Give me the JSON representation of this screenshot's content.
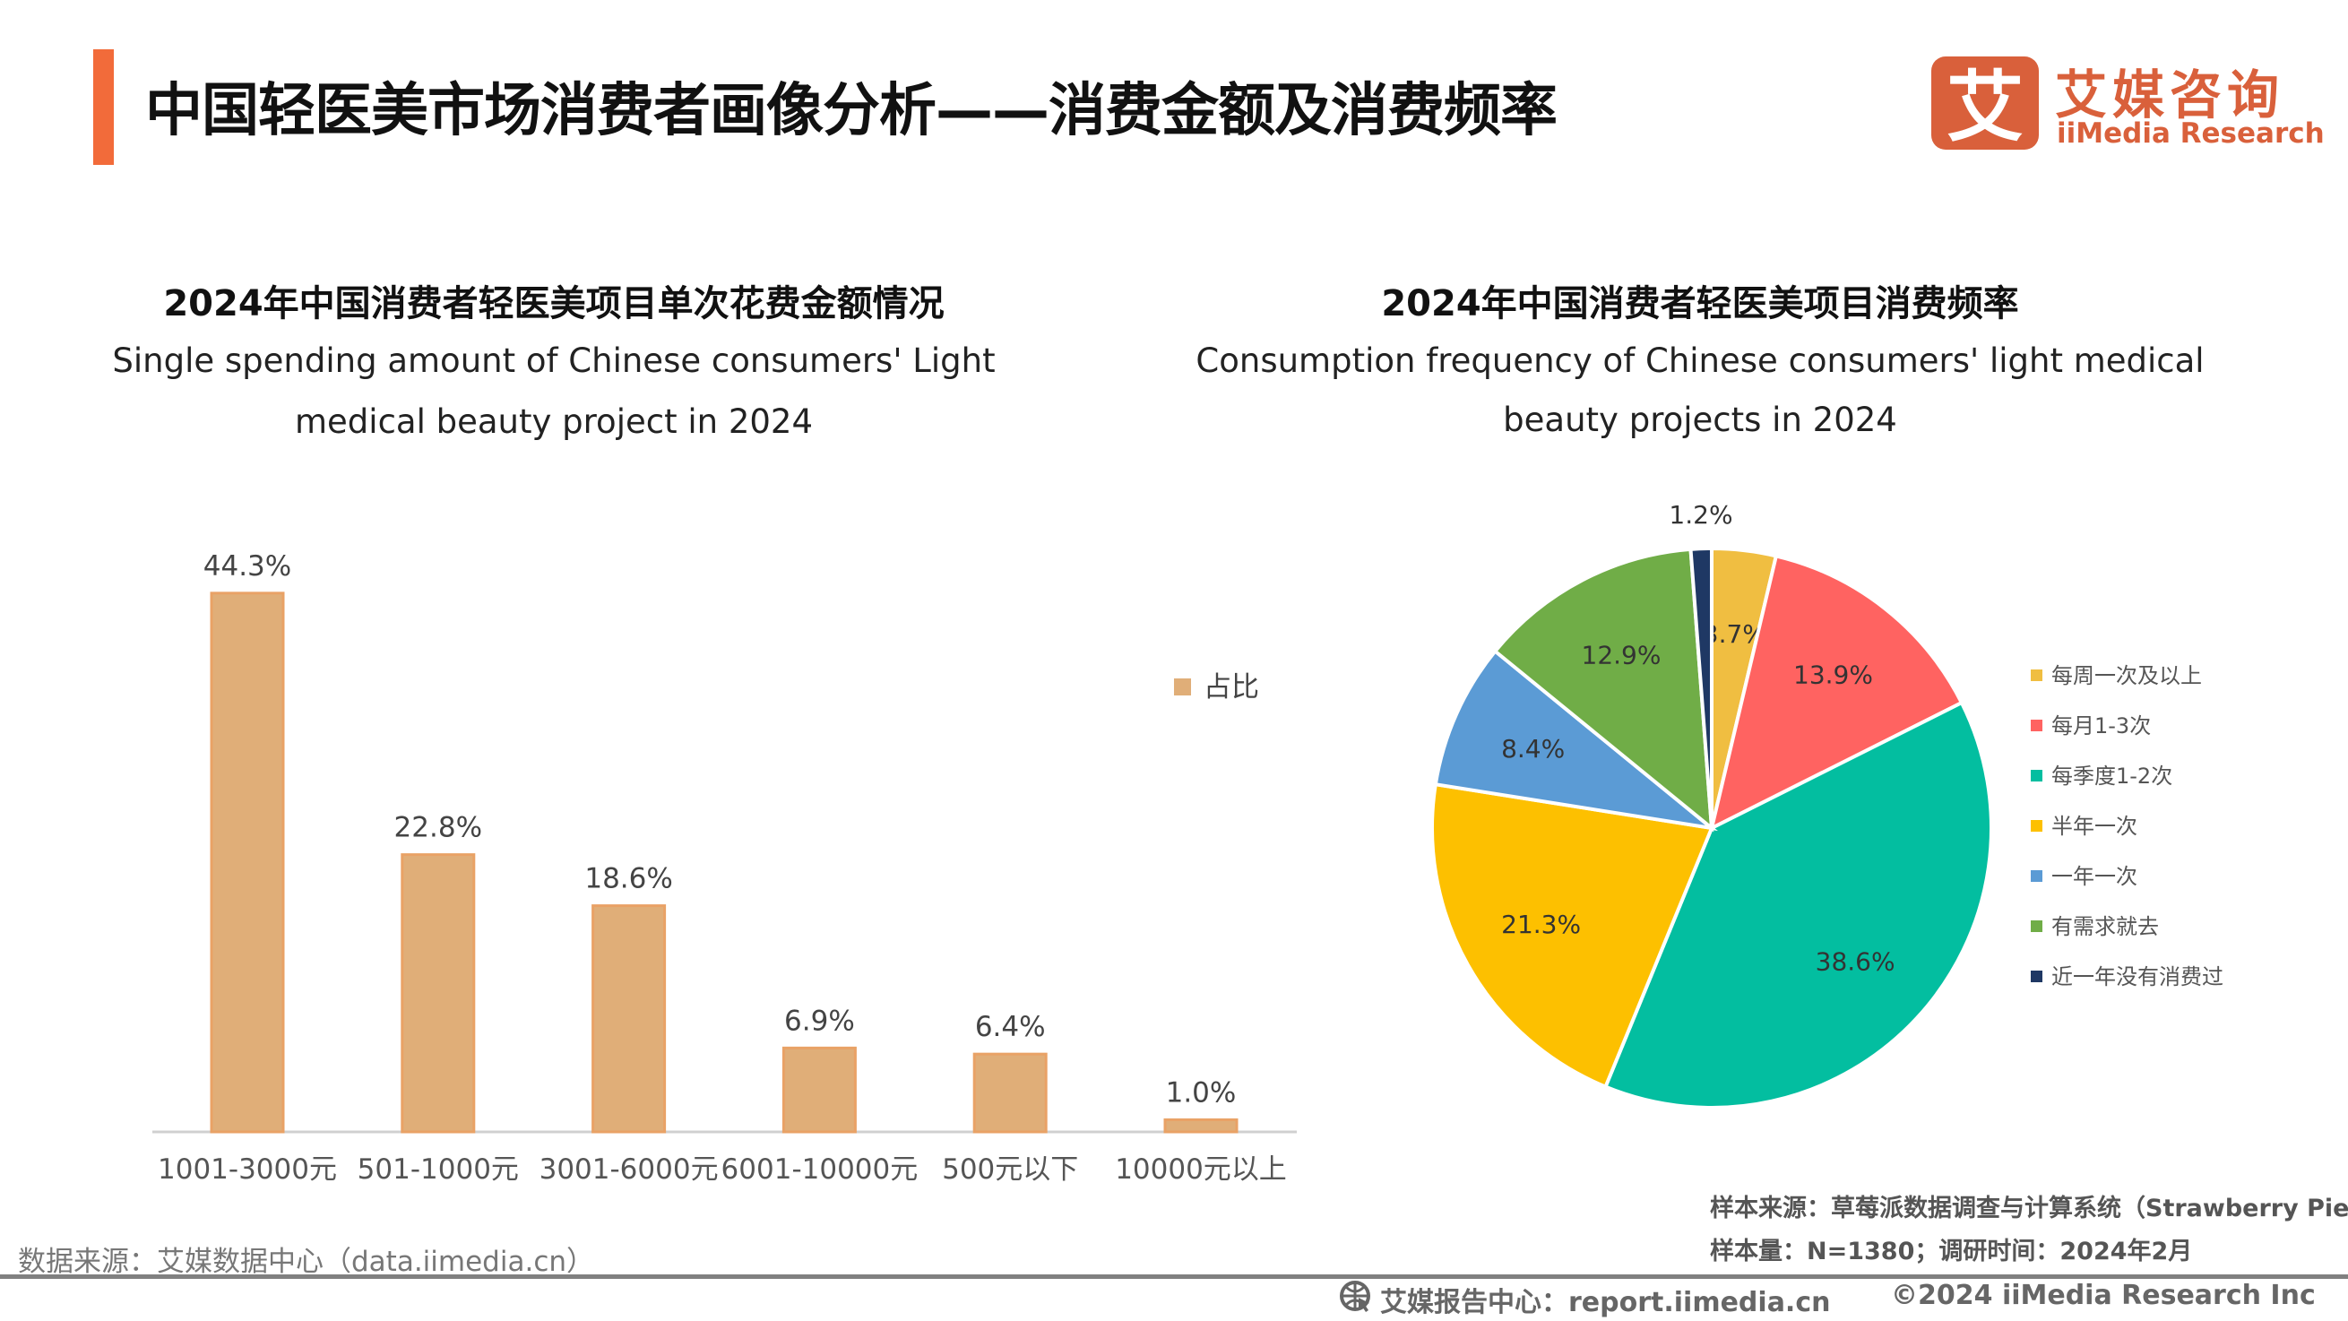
{
  "header": {
    "title": "中国轻医美市场消费者画像分析——消费金额及消费频率",
    "logo_cn": "艾媒咨询",
    "logo_en": "iiMedia Research",
    "logo_mark": "艾",
    "accent_color": "#F26B3A"
  },
  "chart_data": [
    {
      "type": "bar",
      "title": "2024年中国消费者轻医美项目单次花费金额情况",
      "subtitle": [
        "Single spending amount of Chinese consumers' Light",
        "medical beauty project in 2024"
      ],
      "categories": [
        "1001-3000元",
        "501-1000元",
        "3001-6000元",
        "6001-10000元",
        "500元以下",
        "10000元以上"
      ],
      "series": [
        {
          "name": "占比",
          "values": [
            44.3,
            22.8,
            18.6,
            6.9,
            6.4,
            1.0
          ],
          "color": "#E0AE78"
        }
      ],
      "data_labels": [
        "44.3%",
        "22.8%",
        "18.6%",
        "6.9%",
        "6.4%",
        "1.0%"
      ],
      "unit": "%",
      "legend": "right",
      "grid": false
    },
    {
      "type": "pie",
      "title": "2024年中国消费者轻医美项目消费频率",
      "subtitle": [
        "Consumption frequency of Chinese consumers' light medical",
        "beauty projects in 2024"
      ],
      "slices": [
        {
          "label": "每周一次及以上",
          "value": 3.7,
          "text": "3.7%",
          "color": "#F0BE41"
        },
        {
          "label": "每月1-3次",
          "value": 13.9,
          "text": "13.9%",
          "color": "#FF6361"
        },
        {
          "label": "每季度1-2次",
          "value": 38.6,
          "text": "38.6%",
          "color": "#03BEA0"
        },
        {
          "label": "半年一次",
          "value": 21.3,
          "text": "21.3%",
          "color": "#FDC000"
        },
        {
          "label": "一年一次",
          "value": 8.4,
          "text": "8.4%",
          "color": "#5B9BD5"
        },
        {
          "label": "有需求就去",
          "value": 12.9,
          "text": "12.9%",
          "color": "#70AD47"
        },
        {
          "label": "近一年没有消费过",
          "value": 1.2,
          "text": "1.2%",
          "color": "#1F3864"
        }
      ],
      "legend": "right"
    }
  ],
  "notes": {
    "source_left": "数据来源：艾媒数据中心（data.iimedia.cn）",
    "sample_source": "样本来源：草莓派数据调查与计算系统（Strawberry Pie）",
    "sample_size": "样本量：N=1380；调研时间：2024年2月"
  },
  "footer": {
    "report_center": "艾媒报告中心：report.iimedia.cn",
    "copyright": "©2024  iiMedia Research  Inc",
    "icon": "globe-cursor-icon"
  }
}
